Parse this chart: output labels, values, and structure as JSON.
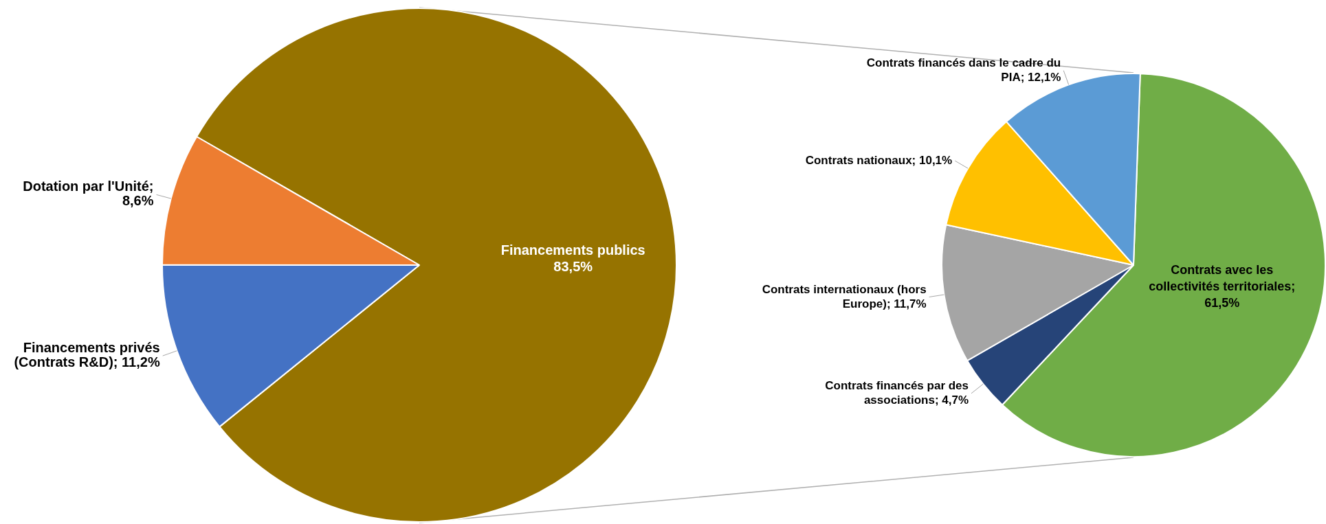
{
  "chart_data": [
    {
      "type": "pie",
      "categories": [
        "Financements publics",
        "Financements privés (Contrats R&D)",
        "Dotation par l'Unité"
      ],
      "values": [
        83.5,
        11.2,
        8.6
      ],
      "value_labels": [
        "83,5%",
        "; 11,2%",
        "; 8,6%"
      ],
      "colors": [
        "#967300",
        "#4472c4",
        "#ed7d31"
      ],
      "legend": false
    },
    {
      "type": "pie",
      "categories": [
        "Contrats avec les collectivités territoriales",
        "Contrats financés par des associations",
        "Contrats internationaux (hors Europe)",
        "Contrats nationaux",
        "Contrats financés dans le cadre du PIA"
      ],
      "values": [
        61.5,
        4.7,
        11.7,
        10.1,
        12.1
      ],
      "value_labels": [
        "; 61,5%",
        "; 4,7%",
        "; 11,7%",
        "; 10,1%",
        "; 12,1%"
      ],
      "colors": [
        "#70ad47",
        "#264478",
        "#a5a5a5",
        "#ffc000",
        "#5b9bd5"
      ],
      "legend": false
    }
  ]
}
